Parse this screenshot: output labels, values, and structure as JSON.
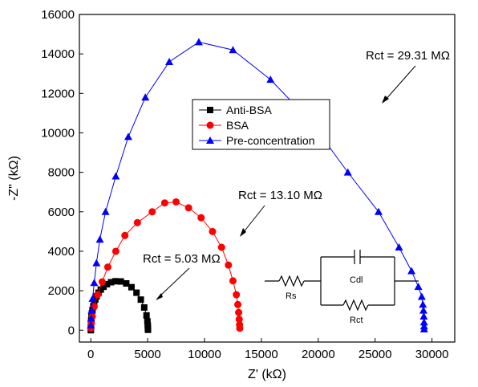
{
  "chart_data": {
    "type": "scatter",
    "xlabel": "Z' (kΩ)",
    "ylabel": "-Z\" (kΩ)",
    "xlim": [
      -1000,
      32000
    ],
    "ylim": [
      -600,
      16000
    ],
    "xticks": [
      "0",
      "5000",
      "10000",
      "15000",
      "20000",
      "25000",
      "30000"
    ],
    "yticks": [
      "0",
      "2000",
      "4000",
      "6000",
      "8000",
      "10000",
      "12000",
      "14000",
      "16000"
    ],
    "legend_position": "upper-center",
    "series": [
      {
        "name": "Anti-BSA",
        "color": "#000000",
        "marker": "square",
        "x": [
          5,
          10,
          15,
          20,
          30,
          40,
          60,
          100,
          150,
          220,
          300,
          400,
          520,
          680,
          880,
          1120,
          1420,
          1780,
          2180,
          2640,
          3120,
          3580,
          4020,
          4400,
          4700,
          4900,
          4980,
          5010,
          5020,
          5030
        ],
        "y": [
          0,
          100,
          180,
          280,
          400,
          520,
          680,
          860,
          1020,
          1200,
          1380,
          1560,
          1720,
          1900,
          2060,
          2200,
          2330,
          2430,
          2480,
          2470,
          2370,
          2180,
          1900,
          1550,
          1150,
          750,
          450,
          250,
          120,
          20
        ]
      },
      {
        "name": "BSA",
        "color": "#ff0000",
        "marker": "circle",
        "x": [
          10,
          50,
          130,
          300,
          600,
          1000,
          1500,
          2200,
          3000,
          4100,
          5400,
          6500,
          7500,
          8600,
          9700,
          10700,
          11500,
          12100,
          12500,
          12800,
          12930,
          13000,
          13050,
          13080,
          13100
        ],
        "y": [
          100,
          350,
          700,
          1200,
          1800,
          2450,
          3200,
          4000,
          4800,
          5450,
          6000,
          6450,
          6500,
          6200,
          5700,
          5000,
          4200,
          3300,
          2500,
          1800,
          1300,
          900,
          550,
          280,
          100
        ],
        "annotation": "Rct = 13.10 MΩ"
      },
      {
        "name": "Pre-concentration",
        "color": "#0000ff",
        "marker": "triangle",
        "x": [
          10,
          30,
          80,
          160,
          300,
          500,
          800,
          1300,
          2200,
          3300,
          4800,
          6900,
          9500,
          12500,
          15800,
          19300,
          22600,
          25300,
          27100,
          28200,
          28800,
          29100,
          29200,
          29250,
          29280,
          29300,
          29305,
          29310
        ],
        "y": [
          250,
          600,
          1000,
          1600,
          2400,
          3400,
          4600,
          6000,
          7800,
          9800,
          11800,
          13600,
          14600,
          14200,
          12700,
          10600,
          8000,
          6000,
          4200,
          3000,
          2200,
          1700,
          1300,
          1000,
          700,
          400,
          200,
          50
        ],
        "annotation": "Rct = 29.31 MΩ"
      }
    ],
    "annotations": {
      "anti_bsa": "Rct = 5.03 MΩ",
      "bsa": "Rct = 13.10 MΩ",
      "pre": "Rct = 29.31 MΩ"
    },
    "circuit": {
      "rs": "Rs",
      "cdl": "Cdl",
      "rct": "Rct"
    }
  }
}
